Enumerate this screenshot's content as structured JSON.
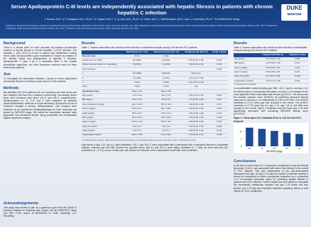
{
  "header": {
    "title": "Serum Apolipoprotein C-III levels are independently associated with hepatic fibrosis in patients with chronic hepatitis C infection",
    "authors": "J. Rowell, M.D.¹, A. Thompson, M.D., Ph.D.², H. Guyton, M.D.³, X. Q. Lan, M.D., Ph.D.⁴, K. Patel, M.D.², J. McHutchison, M.D.², and J.J. McCarthy, Ph.D.⁵. The MURDOCK Study.",
    "institutions": "Institutions: ¹Department of Medicine, Division of Gastroenterology, Endocrinology, Metabolism and Nutrition, Duke University, Durham, NC, USA; ²Department of GI/Hepatology Research Program, Duke Clinical Research Institute; ³Duke Clinical Research Institute, Durham, NC, USA; ⁴Department of Medicine, Duke University Medical Center, Durham, NC, USA; ⁵Institute for Genomic Sciences and Policy, Duke University, Durham, NC, USA.",
    "logo_top": "DUKE",
    "logo_bottom": "MEDICINE"
  },
  "background": {
    "heading": "Background",
    "text": "There is a clinical need for more accurate non-invasive biochemical markers of hepatic fibrosis in chronic hepatitis C (CHC) infection. The hepatitis C virus (HCV) is known to disrupt lipid metabolism, making serum lipids and lipoproteins good candidates to explore as markers of the disease status and pathogenesis of hepatitis C infection. Apolipoprotein C (apo C-III) is a candidate factor in the hepatic fibrosis/lipid algorithms, but other lipoprotein markers have not been extensively explored."
  },
  "aim": {
    "heading": "Aim",
    "text": "To investigate the association between a panel of serum lipoproteins and hepatic fibrosis in a tertiary center cohort of CHC patients."
  },
  "methods": {
    "heading": "Methods",
    "text": "We identified 216 CHC patients from our repository who had serum and liver biopsies that had been obtained concurrently. Non-fasting serum lipids were measured with direct LDL-C and HDL-C measurements. Apolipoproteins A-I, B, C-III and E were analyzed by standard immunoturbidimetric methods at a lipid laboratory. Specimens for lab at Children's Hospital in Boston, Massachusetts. Liver biopsies were reviewed by an experienced hepatopathologist at Duke University and scored by METAVIR stage. We tested the association between each lipoprotein and advanced fibrosis using univariable and multivariable logistic regression analysis."
  },
  "acknowledgements": {
    "heading": "Acknowledgements",
    "text": "This study was funded in part by a generous grant from the David H. Murdock Institute for Business and Culture via the MURDOCK Study and NIH CTSA award UL1RR024128 to Duke University (J.J. McCarthy)."
  },
  "results1": {
    "heading": "Results",
    "caption": "Table 1: Factors associated with advanced liver fibrosis in univariable analysis among 216 chronic HCV patients",
    "table": {
      "columns": [
        "Mild Fibrosis (N = 144)",
        "Advanced Fibrosis (N = 72)",
        "Unadjusted OR (95% CI)",
        "Unadj. P-value"
      ],
      "rows": [
        [
          "Discrete traits",
          "N (%)",
          "N (%)",
          null,
          null
        ],
        [
          "Female Sex (vs. Male)",
          "61 (42%)",
          "23 (32%)",
          "0.64 (0.35, 1.16)",
          "0.144"
        ],
        [
          "African American Race (vs. Caucasian)",
          "39 (27%)",
          "14 (19%)",
          "0.66 (0.33, 1.30)",
          "0.229"
        ],
        [
          "HCV Genotype",
          null,
          null,
          null,
          "0.286"
        ],
        [
          "1",
          "127 (88%)",
          "58 (81%)",
          "Reference",
          null
        ],
        [
          "2",
          "14 (10%)",
          "9 (13%)",
          "1.41 (0.57, 3.45)",
          null
        ],
        [
          "3",
          "3 (2%)",
          "3 (4%)",
          "2.19 (0.43, 11.16)",
          null
        ],
        [
          "Other",
          "0 (0%)",
          "2 (3%)",
          "N/A",
          null
        ],
        [
          "Quantitative traits",
          "Mean ± SD",
          "Mean ± SD",
          null,
          null
        ],
        [
          "Age (years)",
          "47.5 ± 8.9",
          "50.5 ± 7.8",
          "1.05 (1.01, 1.09)",
          "0.016"
        ],
        [
          "BMI (kg/m²)",
          "28.4 ± 5.3",
          "29.5 ± 6.4",
          "1.03 (0.98, 1.09)",
          "0.213"
        ],
        [
          "Total Cholesterol (mg/dL)",
          "161.9 ± 32.8",
          "150.4 ± 32.1",
          "0.99 (0.98, 1.00)",
          "0.017"
        ],
        [
          "LDL-C (mg/dL)",
          "95.9 ± 27.7",
          "90.1 ± 28.2",
          "0.99 (0.98, 1.00)",
          "0.156"
        ],
        [
          "ApoB (mg/dL)",
          "80.6 ± 22.7",
          "75.6 ± 21.4",
          "0.99 (0.98, 1.00)",
          "0.123"
        ],
        [
          "HDL (mg/dL)",
          "45.4 ± 15.6",
          "43.9 ± 16.0",
          "0.99 (0.98, 1.01)",
          "0.510"
        ],
        [
          "ApoA-I (mg/dL)",
          "143.9 ± 27.8",
          "135.9 ± 30.1",
          "0.99 (0.98, 1.00)",
          "0.061"
        ],
        [
          "ApoC-III (mg/dL)*",
          "11.4 ± 4.9",
          "8.8 ± 3.2",
          "0.43 (0.26, 0.71)",
          "<0.001"
        ],
        [
          "ApoE (mg/dL)*",
          "4.6 ± 1.5",
          "4.0 ± 1.3",
          "0.60 (0.30, 1.19)",
          "0.145"
        ],
        [
          "Triglycerides (mg/dL)*",
          "112.5 ± 70.5",
          "97.3 ± 53.1",
          "0.75 (0.50, 1.11)",
          "0.148"
        ]
      ]
    },
    "footnotes": "*Ln-transformed for analysis. Odds ratios are presented for each per unit standard deviation increase in the trait. P-value < 0.05 denoted in bold.",
    "text": "High levels of Apo C-III, Apo A-I, total cholesterol, LDL-C and HDL-C were associated with a decreased odds of advanced fibrosis in univariable analysis, whereas age and BMI showed the opposite effect. Apo A-I and HDL-C were highly correlated (r² = 0.86), as were total and LDL cholesterol (r² = 0.71), so one of each pair was chosen for inclusion in the multivariable model with other covariates."
  },
  "results2": {
    "heading": "Results",
    "caption": "Table 2: Factors associated with advanced liver fibrosis in multivariable analysis among 216 chronic HCV patients",
    "table": {
      "columns": [
        "Adjusted OR (95% CI)",
        "Adjusted P-value"
      ],
      "rows": [
        [
          "Age (years)",
          "1.07 (1.02, 1.12)",
          "0.005"
        ],
        [
          "BMI (kg/m²)",
          "1.05 (0.98, 1.13)",
          "0.154"
        ],
        [
          "LDL-C (mg/dL)",
          "0.99 (0.98, 1.01)",
          "0.491"
        ],
        [
          "ApoA-I (mg/dL)",
          "0.99 (0.98, 1.00)",
          "0.142"
        ],
        [
          "ApoC-III (mg/dL)*",
          "0.37 (0.21, 0.66)",
          "<0.001"
        ],
        [
          "Triglycerides (mg/dL)*",
          "1.32 (0.76, 2.30)",
          "0.329"
        ]
      ]
    },
    "footnotes": "*Ln-transformed for analysis",
    "text": "In a multivariable model including age, BMI, LDL-C, Apo A-I and Apo C-III, the effect of Apo A-I was greatly attenuated, and Apo C-III emerged as the most significant factor associated with fibrosis (p<0.001). The area under the receiver operator curve (AUROC) for predicting advanced fibrosis using Apo A-I and Apo C-III, respectively, is 0.570 and 0.694. The AUROC increased to 0.721 when age was included in the model. The AUROC increased to 0.779 when Apo A-I, Apo C-III, age, LDL-C and BMI were included in the model. Figure 1 illustrates how the mean Apo C-III level significantly decreased with increasing METAVIR fibrosis score (p<0.0001).",
    "figure": {
      "caption": "Figure 1: Mean ApoC-III ± Standard Error in 216 Chronic HCV Subjects",
      "categories": [
        "F0",
        "F1",
        "F2",
        "F3",
        "F4"
      ],
      "values": [
        12.6,
        11.8,
        10.4,
        9.1,
        8.3
      ],
      "ylim": [
        0,
        14
      ],
      "yticks": [
        0,
        5,
        10
      ],
      "x_label": "METAVIR Stage"
    }
  },
  "conclusions": {
    "heading": "Conclusions",
    "text": "A low level of serum Apo-CIII, a lipoprotein constituent of very low density lipoprotein (VLDL), was associated with severe liver fibrosis in this cohort of CHC patients. This was independent of the well-documented association with age. As Apo C-III may be a marker of disease severity, it should be considered for further prospective evaluation as a component of a non-invasive biomarker panel for predicting hepatic fibrosis in patients with CHC infection. Further studies are also needed to elucidate the mechanistic relationship between low Apo C-III levels and liver fibrosis. Apo C-III may also represent important regulatory factors or viral effects on VLDL metabolism."
  }
}
